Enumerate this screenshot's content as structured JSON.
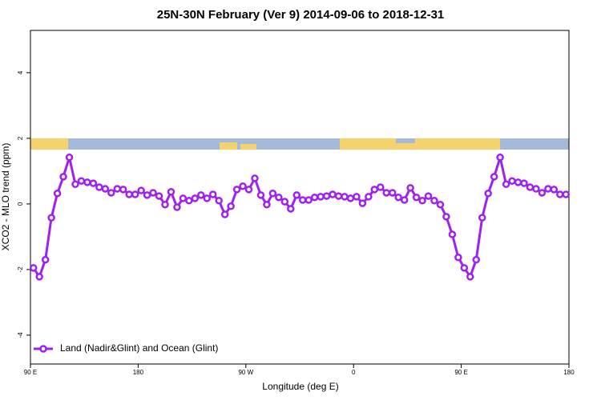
{
  "chart_data": {
    "type": "line",
    "title": "25N-30N February (Ver 9)   2014-09-06 to 2018-12-31",
    "x_label": "Longitude (deg E)",
    "y_label": "XCO2 - MLO trend (ppm)",
    "x": [
      92.5,
      97.5,
      102.5,
      107.5,
      112.5,
      117.5,
      122.5,
      127.5,
      132.5,
      137.5,
      142.5,
      147.5,
      152.5,
      157.5,
      162.5,
      167.5,
      172.5,
      177.5,
      182.5,
      187.5,
      192.5,
      197.5,
      202.5,
      207.5,
      212.5,
      217.5,
      222.5,
      227.5,
      232.5,
      237.5,
      242.5,
      247.5,
      252.5,
      257.5,
      262.5,
      267.5,
      272.5,
      277.5,
      282.5,
      287.5,
      292.5,
      297.5,
      302.5,
      307.5,
      312.5,
      317.5,
      322.5,
      327.5,
      332.5,
      337.5,
      342.5,
      347.5,
      352.5,
      357.5,
      362.5,
      367.5,
      372.5,
      377.5,
      382.5,
      387.5,
      392.5,
      397.5,
      402.5,
      407.5,
      412.5,
      417.5,
      422.5,
      427.5,
      432.5,
      437.5,
      442.5,
      447.5,
      452.5,
      457.5,
      462.5,
      467.5,
      472.5,
      477.5,
      482.5,
      487.5,
      492.5,
      497.5,
      502.5,
      507.5,
      512.5,
      517.5,
      522.5,
      527.5,
      532.5,
      537.5
    ],
    "series": [
      {
        "name": "Land (Nadir&Glint) and Ocean (Glint)",
        "color": "#a020f0",
        "values": [
          -1.95,
          -2.22,
          -1.7,
          -0.42,
          0.32,
          0.83,
          1.42,
          0.6,
          0.7,
          0.66,
          0.63,
          0.51,
          0.46,
          0.34,
          0.46,
          0.44,
          0.29,
          0.29,
          0.41,
          0.27,
          0.34,
          0.24,
          -0.02,
          0.37,
          -0.1,
          0.17,
          0.1,
          0.17,
          0.27,
          0.17,
          0.29,
          0.1,
          -0.32,
          -0.07,
          0.44,
          0.54,
          0.44,
          0.78,
          0.27,
          -0.02,
          0.32,
          0.2,
          0.07,
          -0.15,
          0.27,
          0.12,
          0.12,
          0.2,
          0.22,
          0.24,
          0.29,
          0.24,
          0.22,
          0.17,
          0.22,
          0.02,
          0.22,
          0.44,
          0.51,
          0.34,
          0.34,
          0.2,
          0.12,
          0.49,
          0.2,
          0.1,
          0.24,
          0.1,
          -0.02,
          -0.39,
          -0.93,
          -1.63,
          -1.95,
          -2.22,
          -1.7,
          -0.42,
          0.32,
          0.83,
          1.42,
          0.6,
          0.7,
          0.66,
          0.63,
          0.51,
          0.46,
          0.34,
          0.46,
          0.44,
          0.29,
          0.29
        ]
      }
    ],
    "xlim": [
      90,
      540
    ],
    "xticks": [
      {
        "value": 90,
        "label": "90 E"
      },
      {
        "value": 180,
        "label": "180"
      },
      {
        "value": 270,
        "label": "90 W"
      },
      {
        "value": 360,
        "label": "0"
      },
      {
        "value": 450,
        "label": "90 E"
      },
      {
        "value": 540,
        "label": "180"
      }
    ],
    "ylim": [
      -4.88,
      5.29
    ],
    "yticks": [
      -4,
      -2,
      0,
      2,
      4
    ],
    "legend": "bottom-left"
  }
}
